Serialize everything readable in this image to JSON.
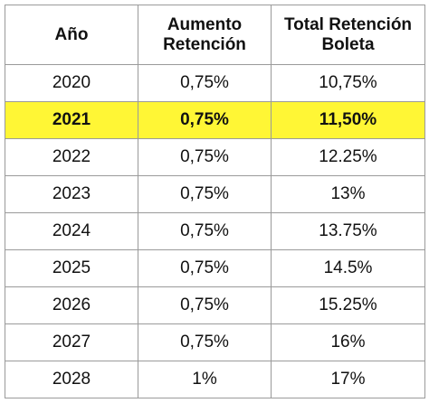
{
  "chart_data": {
    "type": "table",
    "columns": [
      "Año",
      "Aumento\nRetención",
      "Total Retención\nBoleta"
    ],
    "rows": [
      [
        "2020",
        "0,75%",
        "10,75%"
      ],
      [
        "2021",
        "0,75%",
        "11,50%"
      ],
      [
        "2022",
        "0,75%",
        "12.25%"
      ],
      [
        "2023",
        "0,75%",
        "13%"
      ],
      [
        "2024",
        "0,75%",
        "13.75%"
      ],
      [
        "2025",
        "0,75%",
        "14.5%"
      ],
      [
        "2026",
        "0,75%",
        "15.25%"
      ],
      [
        "2027",
        "0,75%",
        "16%"
      ],
      [
        "2028",
        "1%",
        "17%"
      ]
    ],
    "highlighted_row": 1,
    "highlight_color": "#fff635",
    "border_color": "#9a9a9a"
  }
}
